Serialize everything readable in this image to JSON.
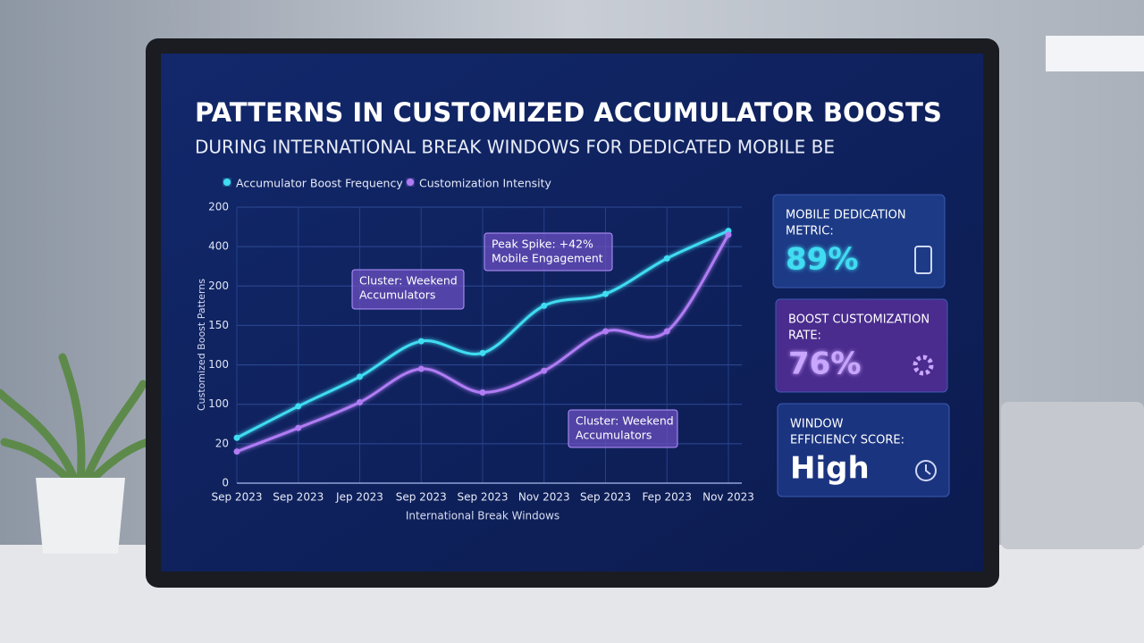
{
  "chart_data": {
    "type": "line",
    "title": "PATTERNS IN CUSTOMIZED ACCUMULATOR BOOSTS",
    "subtitle": "DURING INTERNATIONAL BREAK WINDOWS FOR DEDICATED MOBILE BE",
    "x_label": "International Break Windows",
    "y_label": "Customized Boost Patterns",
    "categories": [
      "Sep 2023",
      "Sep 2023",
      "Jep 2023",
      "Sep 2023",
      "Sep 2023",
      "Nov 2023",
      "Sep 2023",
      "Fep 2023",
      "Nov 2023"
    ],
    "series": [
      {
        "name": "Accumulator Boost Frequency",
        "color": "#3fdcf2",
        "values": [
          1.15,
          1.95,
          2.7,
          3.6,
          3.3,
          4.5,
          4.8,
          5.7,
          6.4
        ]
      },
      {
        "name": "Customization Intensity",
        "color": "#b07cf5",
        "values": [
          0.8,
          1.4,
          2.05,
          2.9,
          2.3,
          2.85,
          3.85,
          3.85,
          6.3
        ]
      }
    ],
    "ylim": [
      0,
      7
    ],
    "yticks": [
      {
        "value": 0,
        "label": "0"
      },
      {
        "value": 1,
        "label": "20"
      },
      {
        "value": 2,
        "label": "100"
      },
      {
        "value": 3,
        "label": "100"
      },
      {
        "value": 4,
        "label": "150"
      },
      {
        "value": 5,
        "label": "200"
      },
      {
        "value": 6,
        "label": "400"
      },
      {
        "value": 7,
        "label": "200"
      }
    ],
    "grid": true,
    "annotations": [
      {
        "lines": [
          "Cluster: Weekend",
          "Accumulators"
        ]
      },
      {
        "lines": [
          "Peak Spike: +42%",
          "Mobile Engagement"
        ]
      },
      {
        "lines": [
          "Cluster: Weekend",
          "Accumulators"
        ]
      }
    ]
  },
  "kpis": [
    {
      "label": [
        "MOBILE DEDICATION",
        "METRIC:"
      ],
      "value": "89%"
    },
    {
      "label": [
        "BOOST CUSTOMIZATION",
        "RATE:"
      ],
      "value": "76%"
    },
    {
      "label": [
        "WINDOW",
        "EFFICIENCY SCORE:"
      ],
      "value": "High"
    }
  ]
}
